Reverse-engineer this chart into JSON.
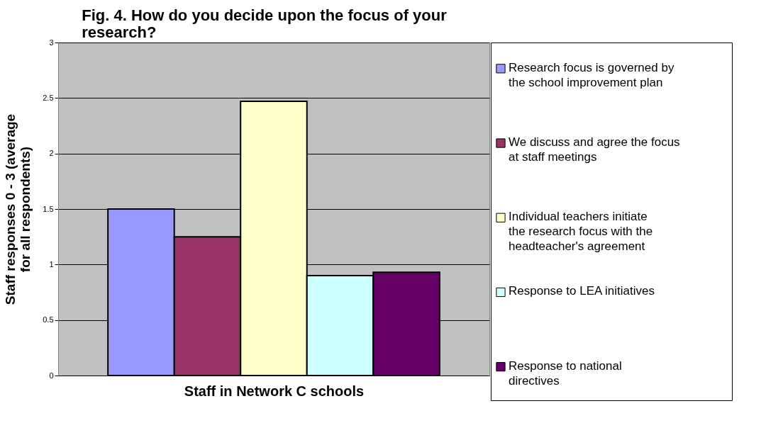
{
  "chart_data": {
    "type": "bar",
    "title": "Fig. 4. How do you decide upon the focus of your research?",
    "xlabel": "Staff in Network C schools",
    "ylabel": "Staff responses 0 - 3 (average for all respondents)",
    "categories": [
      null
    ],
    "series": [
      {
        "name": "Research focus is governed by the school improvement plan",
        "color": "#9999ff",
        "values": [
          1.5
        ]
      },
      {
        "name": "We discuss and agree the focus at staff meetings",
        "color": "#993366",
        "values": [
          1.25
        ]
      },
      {
        "name": "Individual teachers initiate the research focus with the headteacher's agreement",
        "color": "#ffffcc",
        "values": [
          2.47
        ]
      },
      {
        "name": "Response to LEA initiatives",
        "color": "#ccffff",
        "values": [
          0.9
        ]
      },
      {
        "name": "Response to national directives",
        "color": "#660066",
        "values": [
          0.93
        ]
      }
    ],
    "ylim": [
      0,
      3
    ],
    "yticks": [
      0,
      0.5,
      1,
      1.5,
      2,
      2.5,
      3
    ],
    "grid": "y",
    "legend": "right"
  }
}
